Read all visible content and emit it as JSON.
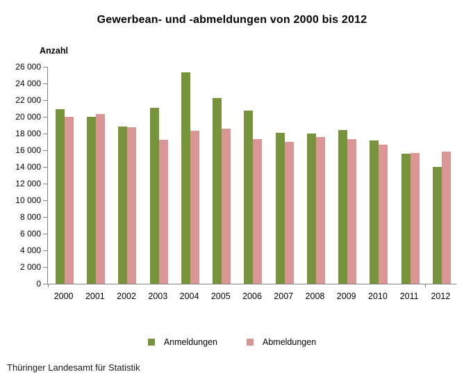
{
  "chart_data": {
    "type": "bar",
    "title": "Gewerbean- und -abmeldungen von 2000 bis 2012",
    "ylabel": "Anzahl",
    "xlabel": "",
    "source": "Thüringer Landesamt für Statistik",
    "categories": [
      "2000",
      "2001",
      "2002",
      "2003",
      "2004",
      "2005",
      "2006",
      "2007",
      "2008",
      "2009",
      "2010",
      "2011",
      "2012"
    ],
    "series": [
      {
        "name": "Anmeldungen",
        "color": "#77933C",
        "values": [
          20950,
          20000,
          18800,
          21050,
          25300,
          22250,
          20750,
          18100,
          18000,
          18450,
          17200,
          15600,
          14000
        ]
      },
      {
        "name": "Abmeldungen",
        "color": "#D99694",
        "values": [
          20000,
          20300,
          18750,
          17250,
          18350,
          18550,
          17350,
          17000,
          17600,
          17300,
          16650,
          15700,
          15850
        ]
      }
    ],
    "ylim": [
      0,
      26000
    ],
    "ytick_step": 2000,
    "grid": false,
    "legend_position": "bottom",
    "axis_color": "#808080",
    "x_tick_positions": [
      "2000-start",
      "2012-start"
    ]
  }
}
